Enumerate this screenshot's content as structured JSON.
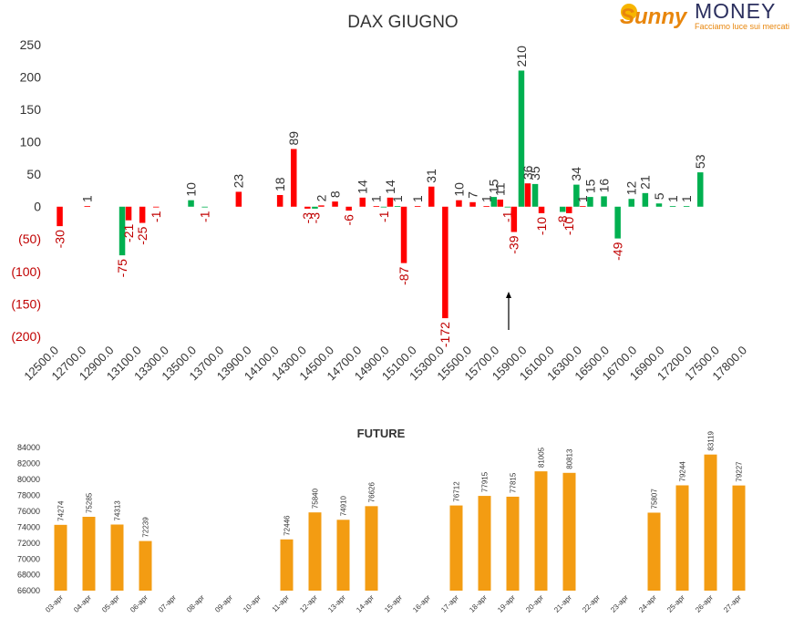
{
  "logo": {
    "brand": "Sunny",
    "name": "MONEY",
    "tagline": "Facciamo luce sui mercati"
  },
  "chart_data": [
    {
      "type": "bar",
      "title": "DAX GIUGNO",
      "categories": [
        "12500.0",
        null,
        "12700.0",
        null,
        "12900.0",
        null,
        "13100.0",
        null,
        "13300.0",
        null,
        "13500.0",
        null,
        "13700.0",
        null,
        "13900.0",
        null,
        "14100.0",
        null,
        "14300.0",
        null,
        "14500.0",
        null,
        "14700.0",
        null,
        "14900.0",
        null,
        "15100.0",
        null,
        "15300.0",
        null,
        "15500.0",
        null,
        "15700.0",
        null,
        "15900.0",
        null,
        "16100.0",
        null,
        "16300.0",
        null,
        "16500.0",
        null,
        "16700.0",
        null,
        "16900.0",
        null,
        "17200.0",
        null,
        "17500.0",
        null,
        "17800.0"
      ],
      "series": [
        {
          "color": "#00b050",
          "values": [
            null,
            null,
            null,
            null,
            null,
            -75,
            null,
            null,
            null,
            null,
            10,
            -1,
            null,
            null,
            null,
            null,
            null,
            null,
            null,
            -3,
            null,
            null,
            null,
            null,
            -1,
            1,
            null,
            null,
            null,
            null,
            null,
            null,
            15,
            -1,
            210,
            35,
            null,
            -8,
            34,
            15,
            16,
            -49,
            12,
            21,
            5,
            1,
            1,
            53,
            null,
            null,
            null
          ]
        },
        {
          "color": "#ff0000",
          "values": [
            -30,
            null,
            1,
            null,
            null,
            -21,
            -25,
            -1,
            null,
            null,
            null,
            null,
            null,
            23,
            null,
            null,
            18,
            89,
            -3,
            2,
            8,
            -6,
            14,
            1,
            14,
            -87,
            1,
            31,
            -172,
            10,
            7,
            1,
            11,
            -39,
            36,
            -10,
            null,
            -10,
            1,
            null,
            null,
            null,
            null,
            null,
            null,
            null,
            null,
            null,
            null,
            null,
            null
          ]
        }
      ],
      "ylim": [
        -200,
        250
      ],
      "yticks": [
        {
          "value": -200,
          "label": "(200)"
        },
        {
          "value": -150,
          "label": "(150)"
        },
        {
          "value": -100,
          "label": "(100)"
        },
        {
          "value": -50,
          "label": "(50)"
        },
        0,
        50,
        100,
        150,
        200,
        250
      ],
      "negative_color": "#c00000",
      "grid": false
    },
    {
      "type": "bar",
      "title": "FUTURE",
      "categories": [
        "03-apr",
        "04-apr",
        "05-apr",
        "06-apr",
        "07-apr",
        "08-apr",
        "09-apr",
        "10-apr",
        "11-apr",
        "12-apr",
        "13-apr",
        "14-apr",
        "15-apr",
        "16-apr",
        "17-apr",
        "18-apr",
        "19-apr",
        "20-apr",
        "21-apr",
        "22-apr",
        "23-apr",
        "24-apr",
        "25-apr",
        "26-apr",
        "27-apr"
      ],
      "series": [
        {
          "color": "#f39c12",
          "values": [
            74274,
            75285,
            74313,
            72239,
            null,
            null,
            null,
            null,
            72446,
            75840,
            74910,
            76626,
            null,
            null,
            76712,
            77915,
            77815,
            81005,
            80813,
            null,
            null,
            75807,
            79244,
            83119,
            79227
          ]
        }
      ],
      "ylim": [
        66000,
        84000
      ],
      "yticks": [
        66000,
        68000,
        70000,
        72000,
        74000,
        76000,
        78000,
        80000,
        82000,
        84000
      ],
      "grid": false
    }
  ]
}
